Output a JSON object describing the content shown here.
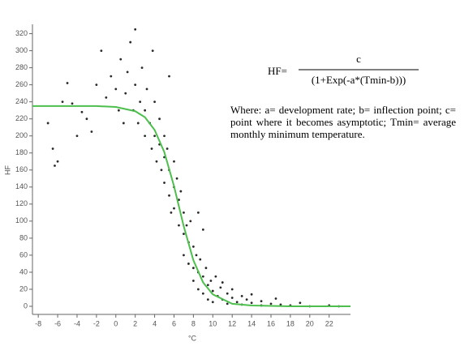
{
  "chart_data": {
    "type": "scatter",
    "y_label": "HF",
    "x_label": "°C",
    "xlim": [
      -8.6,
      24.2
    ],
    "ylim": [
      -9.5,
      331
    ],
    "xticks": [
      -8,
      -6,
      -4,
      -2,
      0,
      2,
      4,
      6,
      8,
      10,
      12,
      14,
      16,
      18,
      20,
      22
    ],
    "yticks": [
      0,
      20,
      40,
      60,
      80,
      100,
      120,
      140,
      160,
      180,
      200,
      220,
      240,
      260,
      280,
      300,
      320
    ],
    "color": "#2a2a2a",
    "x": [
      -7,
      -6.5,
      -6.3,
      -6,
      -5.5,
      -5,
      -4.5,
      -4,
      -3.5,
      -3,
      -2.5,
      -2,
      -1.5,
      -1,
      -0.5,
      0,
      0.3,
      0.5,
      0.8,
      1,
      1.2,
      1.5,
      1.8,
      2,
      2,
      2.3,
      2.5,
      2.7,
      3,
      3,
      3.2,
      3.5,
      3.7,
      4,
      4,
      4.2,
      4.5,
      4.5,
      4.7,
      5,
      5,
      5,
      5.3,
      5.5,
      5.5,
      5.7,
      6,
      6,
      6,
      6.3,
      6.5,
      6.5,
      6.7,
      7,
      7,
      7,
      7.3,
      7.5,
      7.5,
      7.7,
      8,
      8,
      8,
      8.3,
      8.5,
      8.5,
      8.7,
      9,
      9,
      9.3,
      9.5,
      9.5,
      9.8,
      10,
      10,
      10.3,
      10.5,
      10.8,
      11,
      11,
      11.5,
      11.5,
      12,
      12,
      12.5,
      13,
      13,
      13.5,
      14,
      14,
      15,
      15,
      16,
      16.5,
      17,
      18,
      19,
      20,
      22,
      23,
      5.5,
      3.8,
      8.5,
      9
    ],
    "values": [
      215,
      185,
      165,
      170,
      240,
      262,
      238,
      200,
      228,
      220,
      205,
      260,
      300,
      245,
      270,
      255,
      230,
      290,
      215,
      250,
      275,
      310,
      230,
      260,
      325,
      215,
      240,
      280,
      230,
      200,
      255,
      215,
      185,
      240,
      200,
      170,
      220,
      190,
      160,
      200,
      175,
      145,
      185,
      160,
      130,
      110,
      170,
      140,
      115,
      150,
      125,
      95,
      135,
      110,
      85,
      60,
      95,
      75,
      50,
      100,
      70,
      45,
      30,
      60,
      40,
      20,
      55,
      35,
      15,
      45,
      25,
      8,
      30,
      18,
      5,
      35,
      12,
      22,
      8,
      28,
      15,
      3,
      10,
      20,
      5,
      12,
      2,
      8,
      4,
      14,
      6,
      1,
      3,
      9,
      2,
      1,
      4,
      0,
      1,
      0,
      270,
      300,
      110,
      90
    ],
    "fit": {
      "type": "line",
      "color": "#4cbf4c",
      "x": [
        -8.6,
        -4,
        -2,
        0,
        2,
        3,
        4,
        5,
        6,
        7,
        8,
        9,
        10,
        12,
        14,
        18,
        24.2
      ],
      "values": [
        235,
        235,
        235,
        234,
        229,
        222,
        207,
        181,
        141,
        94,
        54,
        28,
        14,
        3,
        1,
        0,
        0
      ]
    },
    "formula": {
      "lhs": "HF=",
      "numerator": "c",
      "denominator": "(1+Exp(-a*(Tmin-b)))"
    },
    "note": "Where: a= development rate; b= inflection point; c= point where it becomes asymptotic; Tmin= average monthly minimum temperature."
  }
}
